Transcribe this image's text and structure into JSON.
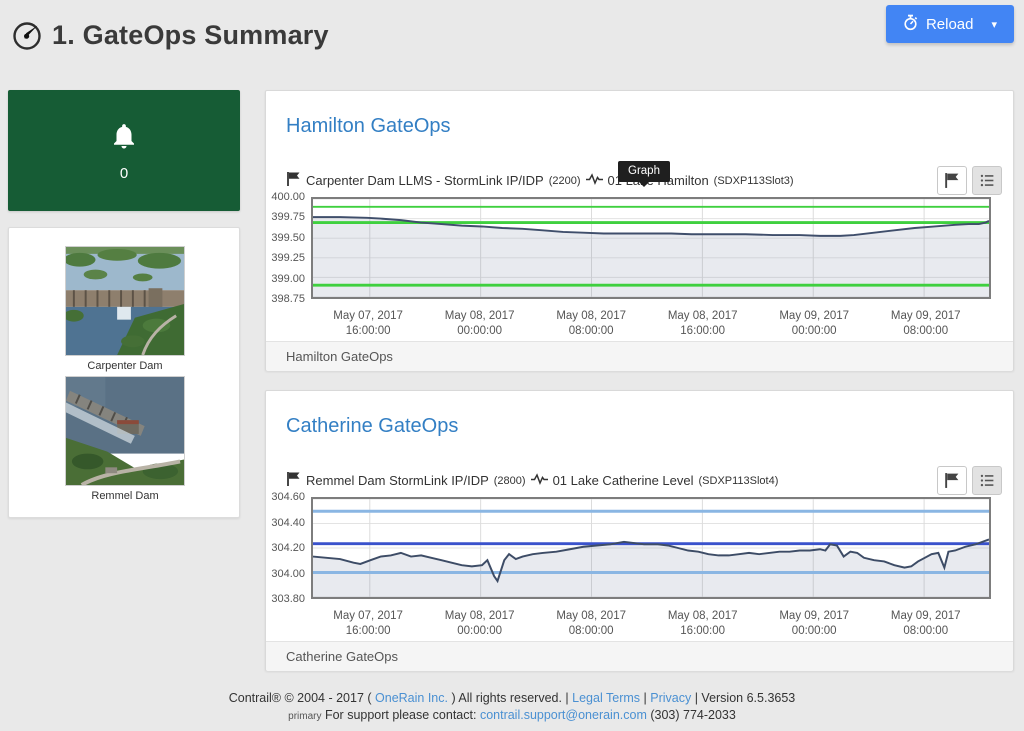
{
  "header": {
    "title": "1. GateOps Summary",
    "reload": {
      "label": "Reload",
      "caret": "▾",
      "color": "#4285f4"
    }
  },
  "sidebar": {
    "alert_count": "0",
    "alert_card_color": "#165c35",
    "images": [
      {
        "label": "Carpenter Dam"
      },
      {
        "label": "Remmel Dam"
      }
    ]
  },
  "tooltip": {
    "label": "Graph"
  },
  "panels": [
    {
      "title": "Hamilton GateOps",
      "sensor": {
        "station": "Carpenter Dam LLMS - StormLink IP/IDP",
        "station_id": "(2200)",
        "name": "01 Lake Hamilton",
        "slot": "(SDXP113Slot3)"
      },
      "footer": "Hamilton GateOps",
      "icons": [
        "flag-icon",
        "list-icon"
      ]
    },
    {
      "title": "Catherine GateOps",
      "sensor": {
        "station": "Remmel Dam StormLink IP/IDP",
        "station_id": "(2800)",
        "name": "01 Lake Catherine Level",
        "slot": "(SDXP113Slot4)"
      },
      "footer": "Catherine GateOps",
      "icons": [
        "flag-icon",
        "list-icon"
      ]
    }
  ],
  "chart_data": [
    {
      "type": "area",
      "title": "01 Lake Hamilton (SDXP113Slot3)",
      "ylim": [
        398.75,
        400.0
      ],
      "yticks": [
        "400.00",
        "399.75",
        "399.50",
        "399.25",
        "399.00",
        "398.75"
      ],
      "grid": true,
      "xticks": [
        {
          "date": "May 07, 2017",
          "time": "16:00:00",
          "frac": 0.084
        },
        {
          "date": "May 08, 2017",
          "time": "00:00:00",
          "frac": 0.248
        },
        {
          "date": "May 08, 2017",
          "time": "08:00:00",
          "frac": 0.412
        },
        {
          "date": "May 08, 2017",
          "time": "16:00:00",
          "frac": 0.576
        },
        {
          "date": "May 09, 2017",
          "time": "00:00:00",
          "frac": 0.74
        },
        {
          "date": "May 09, 2017",
          "time": "08:00:00",
          "frac": 0.904
        }
      ],
      "thresholds": [
        {
          "value": 399.9,
          "color": "#3fd03f",
          "width": 2
        },
        {
          "value": 399.7,
          "color": "#3fd03f",
          "width": 3
        },
        {
          "value": 398.9,
          "color": "#3fd03f",
          "width": 3
        }
      ],
      "series": [
        {
          "name": "01 Lake Hamilton",
          "color": "#3f4e6b",
          "fill": "rgba(90,106,140,0.14)",
          "points": [
            [
              0,
              399.77
            ],
            [
              0.04,
              399.77
            ],
            [
              0.08,
              399.76
            ],
            [
              0.1,
              399.75
            ],
            [
              0.13,
              399.73
            ],
            [
              0.16,
              399.7
            ],
            [
              0.19,
              399.68
            ],
            [
              0.22,
              399.66
            ],
            [
              0.25,
              399.65
            ],
            [
              0.28,
              399.63
            ],
            [
              0.31,
              399.62
            ],
            [
              0.34,
              399.6
            ],
            [
              0.37,
              399.58
            ],
            [
              0.4,
              399.57
            ],
            [
              0.43,
              399.56
            ],
            [
              0.47,
              399.56
            ],
            [
              0.5,
              399.56
            ],
            [
              0.53,
              399.56
            ],
            [
              0.56,
              399.55
            ],
            [
              0.6,
              399.55
            ],
            [
              0.64,
              399.55
            ],
            [
              0.68,
              399.54
            ],
            [
              0.72,
              399.54
            ],
            [
              0.75,
              399.53
            ],
            [
              0.78,
              399.53
            ],
            [
              0.8,
              399.54
            ],
            [
              0.83,
              399.57
            ],
            [
              0.86,
              399.6
            ],
            [
              0.89,
              399.63
            ],
            [
              0.92,
              399.65
            ],
            [
              0.95,
              399.67
            ],
            [
              0.97,
              399.68
            ],
            [
              0.985,
              399.68
            ],
            [
              0.995,
              399.7
            ],
            [
              1,
              399.72
            ]
          ]
        }
      ]
    },
    {
      "type": "area",
      "title": "01 Lake Catherine Level (SDXP113Slot4)",
      "ylim": [
        303.8,
        304.6
      ],
      "yticks": [
        "304.60",
        "304.40",
        "304.20",
        "304.00",
        "303.80"
      ],
      "grid": true,
      "xticks": [
        {
          "date": "May 07, 2017",
          "time": "16:00:00",
          "frac": 0.084
        },
        {
          "date": "May 08, 2017",
          "time": "00:00:00",
          "frac": 0.248
        },
        {
          "date": "May 08, 2017",
          "time": "08:00:00",
          "frac": 0.412
        },
        {
          "date": "May 08, 2017",
          "time": "16:00:00",
          "frac": 0.576
        },
        {
          "date": "May 09, 2017",
          "time": "00:00:00",
          "frac": 0.74
        },
        {
          "date": "May 09, 2017",
          "time": "08:00:00",
          "frac": 0.904
        }
      ],
      "thresholds": [
        {
          "value": 304.5,
          "color": "#8ab6e3",
          "width": 3
        },
        {
          "value": 304.235,
          "color": "#3a52cc",
          "width": 3
        },
        {
          "value": 304.0,
          "color": "#8ab6e3",
          "width": 3
        }
      ],
      "series": [
        {
          "name": "01 Lake Catherine Level",
          "color": "#3d4c66",
          "fill": "rgba(90,106,140,0.14)",
          "points": [
            [
              0,
              304.13
            ],
            [
              0.02,
              304.12
            ],
            [
              0.04,
              304.11
            ],
            [
              0.06,
              304.08
            ],
            [
              0.07,
              304.07
            ],
            [
              0.085,
              304.1
            ],
            [
              0.1,
              304.13
            ],
            [
              0.115,
              304.14
            ],
            [
              0.13,
              304.16
            ],
            [
              0.145,
              304.13
            ],
            [
              0.16,
              304.14
            ],
            [
              0.175,
              304.12
            ],
            [
              0.19,
              304.1
            ],
            [
              0.205,
              304.08
            ],
            [
              0.22,
              304.06
            ],
            [
              0.235,
              304.05
            ],
            [
              0.25,
              304.06
            ],
            [
              0.258,
              304.1
            ],
            [
              0.268,
              303.97
            ],
            [
              0.273,
              303.93
            ],
            [
              0.283,
              304.1
            ],
            [
              0.29,
              304.15
            ],
            [
              0.3,
              304.11
            ],
            [
              0.31,
              304.13
            ],
            [
              0.325,
              304.15
            ],
            [
              0.34,
              304.16
            ],
            [
              0.36,
              304.17
            ],
            [
              0.38,
              304.19
            ],
            [
              0.4,
              304.21
            ],
            [
              0.42,
              304.22
            ],
            [
              0.44,
              304.23
            ],
            [
              0.46,
              304.25
            ],
            [
              0.475,
              304.24
            ],
            [
              0.49,
              304.23
            ],
            [
              0.51,
              304.23
            ],
            [
              0.525,
              304.22
            ],
            [
              0.54,
              304.2
            ],
            [
              0.555,
              304.18
            ],
            [
              0.57,
              304.17
            ],
            [
              0.585,
              304.15
            ],
            [
              0.6,
              304.14
            ],
            [
              0.615,
              304.14
            ],
            [
              0.63,
              304.15
            ],
            [
              0.645,
              304.16
            ],
            [
              0.66,
              304.15
            ],
            [
              0.675,
              304.16
            ],
            [
              0.69,
              304.17
            ],
            [
              0.705,
              304.17
            ],
            [
              0.72,
              304.18
            ],
            [
              0.735,
              304.18
            ],
            [
              0.75,
              304.19
            ],
            [
              0.758,
              304.18
            ],
            [
              0.765,
              304.23
            ],
            [
              0.775,
              304.22
            ],
            [
              0.785,
              304.13
            ],
            [
              0.795,
              304.17
            ],
            [
              0.805,
              304.16
            ],
            [
              0.815,
              304.12
            ],
            [
              0.83,
              304.1
            ],
            [
              0.845,
              304.09
            ],
            [
              0.86,
              304.06
            ],
            [
              0.875,
              304.04
            ],
            [
              0.885,
              304.05
            ],
            [
              0.895,
              304.09
            ],
            [
              0.905,
              304.12
            ],
            [
              0.915,
              304.15
            ],
            [
              0.925,
              304.16
            ],
            [
              0.934,
              304.04
            ],
            [
              0.94,
              304.17
            ],
            [
              0.95,
              304.18
            ],
            [
              0.965,
              304.21
            ],
            [
              0.98,
              304.23
            ],
            [
              1,
              304.27
            ]
          ]
        }
      ]
    }
  ],
  "footer": {
    "line1_prefix": "Contrail® © 2004 - 2017 (",
    "onerain_link": "OneRain Inc.",
    "line1_mid": ") All rights reserved. |",
    "legal_terms": "Legal Terms",
    "sep": "|",
    "privacy": "Privacy",
    "version": "| Version 6.5.3653",
    "support_tag": "primary",
    "support_text": "For support please contact:",
    "support_email": "contrail.support@onerain.com",
    "support_phone": "(303) 774-2033"
  }
}
